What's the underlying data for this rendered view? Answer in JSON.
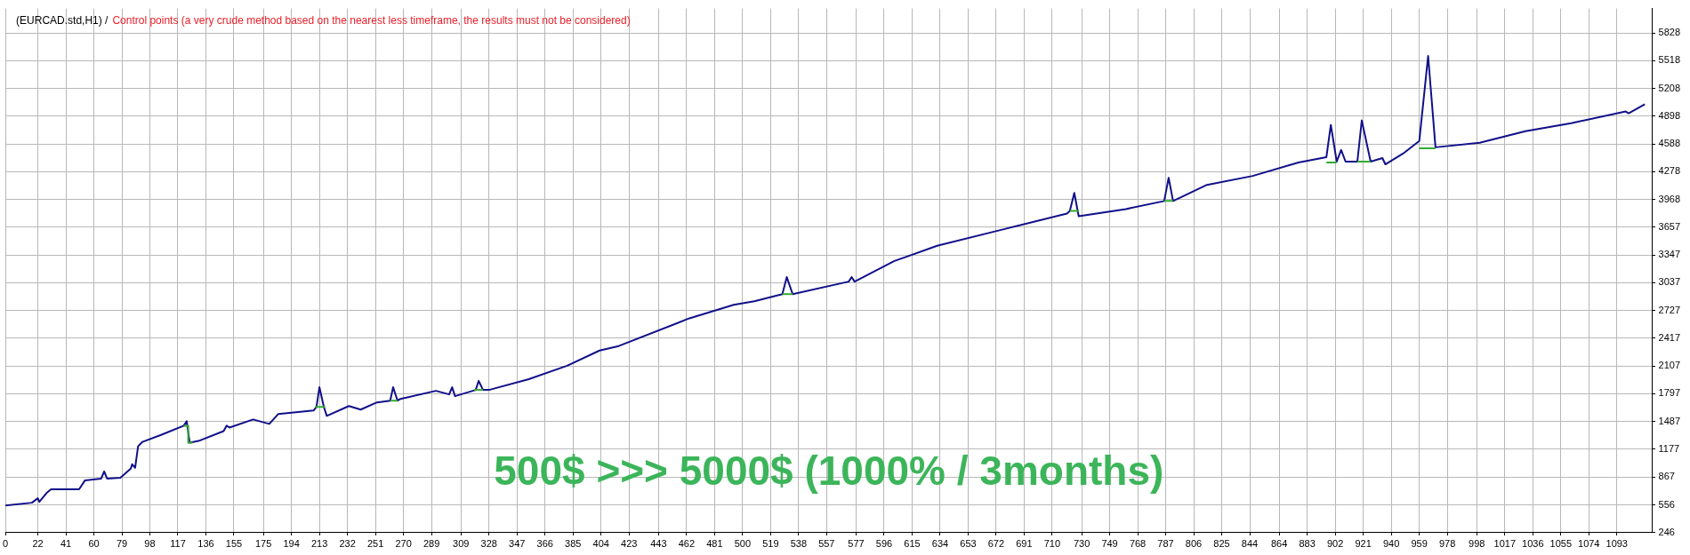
{
  "chart_data": {
    "type": "line",
    "title": "(EURCAD.std,H1) /",
    "subtitle": "Control points (a very crude method based on the nearest less timeframe, the results must not be considered)",
    "annotations": [
      "500$ >>> 5000$ (1000% / 3months)"
    ],
    "series": [
      {
        "color": "#10108a",
        "x": [
          0,
          18,
          22,
          23,
          28,
          31,
          50,
          54,
          65,
          67,
          69,
          78,
          85,
          86,
          88,
          90,
          93,
          106,
          121,
          123,
          125,
          131,
          148,
          150,
          152,
          168,
          179,
          185,
          209,
          211,
          213,
          216,
          218,
          233,
          241,
          252,
          261,
          263,
          266,
          268,
          292,
          301,
          303,
          305,
          319,
          321,
          324,
          328,
          355,
          381,
          403,
          416,
          464,
          494,
          508,
          527,
          530,
          534,
          572,
          574,
          576,
          603,
          632,
          676,
          720,
          722,
          725,
          728,
          760,
          786,
          789,
          792,
          815,
          846,
          877,
          896,
          899,
          903,
          906,
          909,
          917,
          920,
          926,
          934,
          936,
          948,
          959,
          965,
          970,
          1000,
          1031,
          1062,
          1099,
          1101,
          1112
        ],
        "values": [
          550,
          580,
          630,
          590,
          690,
          730,
          730,
          830,
          850,
          930,
          850,
          860,
          960,
          1010,
          970,
          1210,
          1260,
          1340,
          1440,
          1490,
          1250,
          1270,
          1380,
          1440,
          1420,
          1510,
          1460,
          1570,
          1610,
          1650,
          1870,
          1650,
          1550,
          1660,
          1620,
          1700,
          1720,
          1870,
          1720,
          1740,
          1830,
          1790,
          1870,
          1770,
          1840,
          1940,
          1840,
          1840,
          1960,
          2110,
          2280,
          2330,
          2640,
          2790,
          2830,
          2910,
          3100,
          2910,
          3050,
          3100,
          3050,
          3280,
          3450,
          3630,
          3810,
          3840,
          4040,
          3780,
          3860,
          3950,
          4210,
          3950,
          4130,
          4230,
          4380,
          4440,
          4800,
          4390,
          4520,
          4390,
          4390,
          4850,
          4390,
          4430,
          4360,
          4480,
          4620,
          5570,
          4550,
          4600,
          4730,
          4820,
          4950,
          4930,
          5030
        ]
      },
      {
        "color": "#33aa33",
        "x": [
          121,
          124,
          124,
          127
        ],
        "values": [
          1440,
          1440,
          1250,
          1250
        ]
      },
      {
        "color": "#33aa33",
        "x": [
          210,
          217
        ],
        "values": [
          1650,
          1650
        ]
      },
      {
        "color": "#33aa33",
        "x": [
          261,
          266
        ],
        "values": [
          1720,
          1720
        ]
      },
      {
        "color": "#33aa33",
        "x": [
          318,
          324
        ],
        "values": [
          1840,
          1840
        ]
      },
      {
        "color": "#33aa33",
        "x": [
          527,
          534
        ],
        "values": [
          2910,
          2910
        ]
      },
      {
        "color": "#33aa33",
        "x": [
          722,
          728
        ],
        "values": [
          3840,
          3840
        ]
      },
      {
        "color": "#33aa33",
        "x": [
          786,
          792
        ],
        "values": [
          3950,
          3950
        ]
      },
      {
        "color": "#33aa33",
        "x": [
          896,
          903
        ],
        "values": [
          4380,
          4380
        ]
      },
      {
        "color": "#33aa33",
        "x": [
          917,
          926
        ],
        "values": [
          4390,
          4390
        ]
      },
      {
        "color": "#33aa33",
        "x": [
          959,
          970
        ],
        "values": [
          4540,
          4540
        ]
      }
    ],
    "xlim": [
      0,
      1117
    ],
    "ylim": [
      246,
      6100
    ],
    "xticks": [
      0,
      22,
      41,
      60,
      79,
      98,
      117,
      136,
      155,
      175,
      194,
      213,
      232,
      251,
      270,
      289,
      309,
      328,
      347,
      366,
      385,
      404,
      423,
      443,
      462,
      481,
      500,
      519,
      538,
      557,
      577,
      596,
      615,
      634,
      653,
      672,
      691,
      710,
      730,
      749,
      768,
      787,
      806,
      825,
      844,
      864,
      883,
      902,
      921,
      940,
      959,
      978,
      998,
      1017,
      1036,
      1055,
      1074,
      1093
    ],
    "yticks": [
      246,
      556,
      867,
      1177,
      1487,
      1797,
      2107,
      2417,
      2727,
      3037,
      3347,
      3657,
      3968,
      4278,
      4588,
      4898,
      5208,
      5518,
      5828
    ],
    "grid": true,
    "legend": false,
    "marker": "none",
    "line_style": "solid"
  }
}
